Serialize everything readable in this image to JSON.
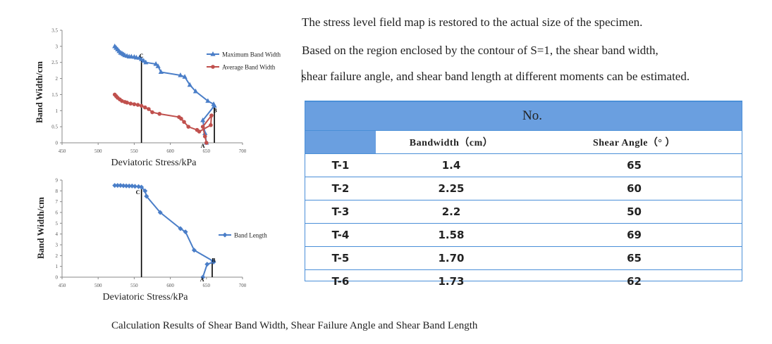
{
  "paragraphs": [
    "The stress level field map is restored to the actual size of the specimen.",
    "Based on the region enclosed by the contour of S=1, the shear band width,",
    "shear failure angle, and shear band length at different moments can be estimated."
  ],
  "table": {
    "no_label": "No.",
    "headers": [
      "Bandwidth（cm）",
      "Shear Angle（° ）"
    ],
    "rows": [
      {
        "id": "T-1",
        "bandwidth": "1.4",
        "angle": "65"
      },
      {
        "id": "T-2",
        "bandwidth": "2.25",
        "angle": "60"
      },
      {
        "id": "T-3",
        "bandwidth": "2.2",
        "angle": "50"
      },
      {
        "id": "T-4",
        "bandwidth": "1.58",
        "angle": "69"
      },
      {
        "id": "T-5",
        "bandwidth": "1.70",
        "angle": "65"
      },
      {
        "id": "T-6",
        "bandwidth": "1.73",
        "angle": "62"
      }
    ]
  },
  "caption": "Calculation Results of Shear Band Width, Shear Failure Angle and Shear Band Length",
  "chart_data": [
    {
      "type": "line",
      "xlabel": "Deviatoric Stress/kPa",
      "ylabel": "Band Width/cm",
      "xlim": [
        450,
        700
      ],
      "ylim": [
        0,
        3.5
      ],
      "xticks": [
        "450",
        "500",
        "550",
        "600",
        "650",
        "700"
      ],
      "yticks": [
        "0",
        "0.5",
        "1",
        "1.5",
        "2",
        "2.5",
        "3",
        "3.5"
      ],
      "grid": false,
      "legend": "right",
      "points_labels": [
        {
          "text": "C",
          "x": 560,
          "y": 2.65
        },
        {
          "text": "B",
          "x": 662,
          "y": 0.95
        },
        {
          "text": "A",
          "x": 645,
          "y": -0.15
        }
      ],
      "vlines": [
        560,
        661
      ],
      "series": [
        {
          "name": "Maximum Band Width",
          "color": "#4a7ec8",
          "marker": "triangle",
          "x": [
            523,
            525,
            527,
            529,
            531,
            533,
            535,
            537,
            540,
            543,
            546,
            550,
            553,
            557,
            560,
            563,
            566,
            580,
            583,
            587,
            614,
            620,
            627,
            635,
            652,
            660,
            661,
            645,
            648,
            650
          ],
          "y": [
            3.0,
            2.95,
            2.9,
            2.85,
            2.8,
            2.78,
            2.75,
            2.72,
            2.7,
            2.68,
            2.68,
            2.67,
            2.65,
            2.64,
            2.6,
            2.55,
            2.5,
            2.45,
            2.38,
            2.2,
            2.1,
            2.05,
            1.8,
            1.6,
            1.3,
            1.2,
            1.15,
            0.7,
            0.3,
            0.0
          ]
        },
        {
          "name": "Average Band Width",
          "color": "#c0504d",
          "marker": "circle",
          "x": [
            523,
            525,
            527,
            530,
            533,
            537,
            540,
            545,
            550,
            555,
            560,
            565,
            570,
            575,
            585,
            612,
            615,
            619,
            625,
            637,
            640,
            656,
            657,
            645,
            648,
            650
          ],
          "y": [
            1.5,
            1.45,
            1.4,
            1.35,
            1.3,
            1.27,
            1.25,
            1.22,
            1.2,
            1.18,
            1.15,
            1.1,
            1.05,
            0.95,
            0.9,
            0.8,
            0.75,
            0.65,
            0.5,
            0.4,
            0.35,
            0.55,
            0.85,
            0.5,
            0.2,
            0.0
          ]
        }
      ]
    },
    {
      "type": "line",
      "xlabel": "Deviatoric Stress/kPa",
      "ylabel": "Band Width/cm",
      "xlim": [
        450,
        700
      ],
      "ylim": [
        0,
        9
      ],
      "xticks": [
        "450",
        "500",
        "550",
        "600",
        "650",
        "700"
      ],
      "yticks": [
        "0",
        "1",
        "2",
        "3",
        "4",
        "5",
        "6",
        "7",
        "8",
        "9"
      ],
      "grid": false,
      "legend": "right",
      "points_labels": [
        {
          "text": "C",
          "x": 555,
          "y": 7.7
        },
        {
          "text": "B",
          "x": 660,
          "y": 1.4
        },
        {
          "text": "A",
          "x": 644,
          "y": -0.4
        }
      ],
      "vlines": [
        560,
        658
      ],
      "series": [
        {
          "name": "Band Length",
          "color": "#4a7ec8",
          "marker": "diamond",
          "x": [
            523,
            527,
            531,
            535,
            539,
            543,
            547,
            551,
            556,
            560,
            565,
            567,
            586,
            614,
            621,
            633,
            659,
            660,
            651,
            645
          ],
          "y": [
            8.5,
            8.5,
            8.5,
            8.48,
            8.46,
            8.45,
            8.45,
            8.42,
            8.4,
            8.35,
            8.0,
            7.5,
            6.0,
            4.5,
            4.2,
            2.5,
            1.5,
            1.4,
            1.2,
            0.0
          ]
        }
      ]
    }
  ]
}
